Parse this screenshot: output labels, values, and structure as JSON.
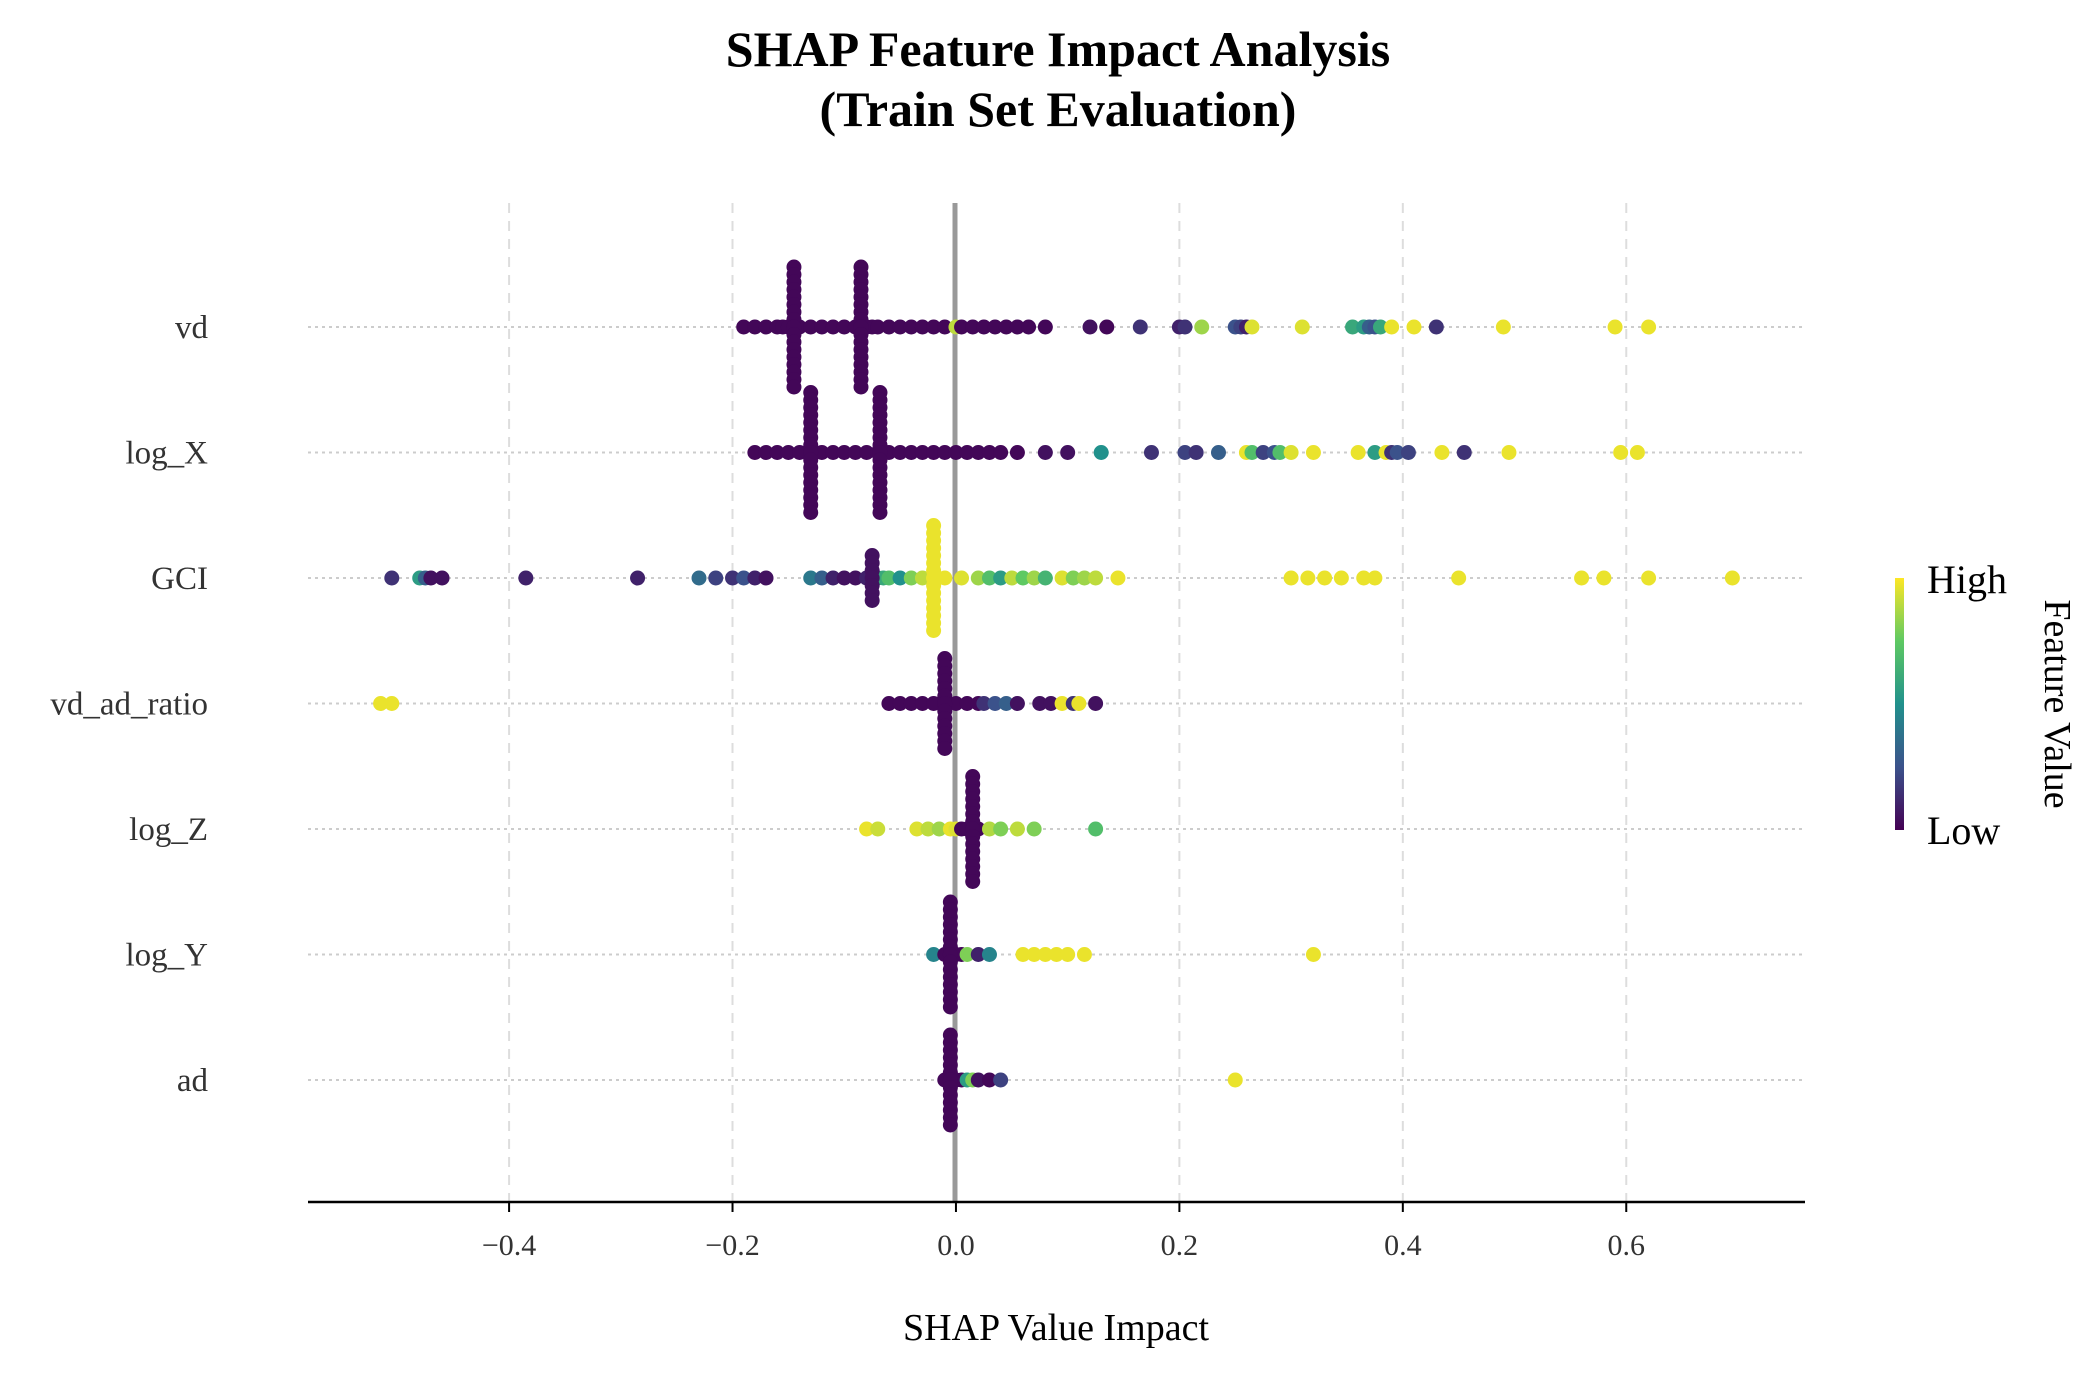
{
  "chart_data": {
    "type": "scatter",
    "title_line1": "SHAP Feature Impact Analysis",
    "title_line2": "(Train Set Evaluation)",
    "xlabel": "SHAP Value Impact",
    "xlim": [
      -0.58,
      0.76
    ],
    "xticks": [
      "−0.4",
      "−0.2",
      "0.0",
      "0.2",
      "0.4",
      "0.6"
    ],
    "xtick_values": [
      -0.4,
      -0.2,
      0.0,
      0.2,
      0.4,
      0.6
    ],
    "grid": true,
    "features": [
      "vd",
      "log_X",
      "GCI",
      "vd_ad_ratio",
      "log_Z",
      "log_Y",
      "ad"
    ],
    "colorbar": {
      "high": "High",
      "low": "Low",
      "title": "Feature Value",
      "colormap": "viridis"
    },
    "series": [
      {
        "feature": "vd",
        "points": [
          [
            -0.19,
            0.02
          ],
          [
            -0.18,
            0.02
          ],
          [
            -0.17,
            0.02
          ],
          [
            -0.16,
            0.02
          ],
          [
            -0.155,
            0.02
          ],
          [
            -0.15,
            0.02
          ],
          [
            -0.145,
            0.02
          ],
          [
            -0.14,
            0.02
          ],
          [
            -0.13,
            0.02
          ],
          [
            -0.12,
            0.02
          ],
          [
            -0.11,
            0.02
          ],
          [
            -0.1,
            0.02
          ],
          [
            -0.09,
            0.02
          ],
          [
            -0.08,
            0.02
          ],
          [
            -0.075,
            0.02
          ],
          [
            -0.07,
            0.02
          ],
          [
            -0.06,
            0.02
          ],
          [
            -0.05,
            0.02
          ],
          [
            -0.04,
            0.02
          ],
          [
            -0.03,
            0.02
          ],
          [
            -0.02,
            0.02
          ],
          [
            -0.01,
            0.02
          ],
          [
            0.0,
            0.9
          ],
          [
            0.005,
            0.02
          ],
          [
            0.015,
            0.02
          ],
          [
            0.025,
            0.02
          ],
          [
            0.035,
            0.02
          ],
          [
            0.045,
            0.02
          ],
          [
            0.055,
            0.02
          ],
          [
            0.065,
            0.02
          ],
          [
            0.08,
            0.02
          ],
          [
            0.12,
            0.05
          ],
          [
            0.135,
            0.02
          ],
          [
            0.165,
            0.15
          ],
          [
            0.2,
            0.1
          ],
          [
            0.205,
            0.15
          ],
          [
            0.22,
            0.85
          ],
          [
            0.25,
            0.25
          ],
          [
            0.255,
            0.2
          ],
          [
            0.26,
            0.1
          ],
          [
            0.265,
            0.95
          ],
          [
            0.31,
            0.95
          ],
          [
            0.355,
            0.6
          ],
          [
            0.365,
            0.55
          ],
          [
            0.37,
            0.3
          ],
          [
            0.375,
            0.25
          ],
          [
            0.38,
            0.6
          ],
          [
            0.39,
            0.97
          ],
          [
            0.41,
            0.97
          ],
          [
            0.43,
            0.15
          ],
          [
            0.49,
            0.97
          ],
          [
            0.59,
            0.97
          ],
          [
            0.62,
            0.97
          ]
        ]
      },
      {
        "feature": "log_X",
        "points": [
          [
            -0.18,
            0.02
          ],
          [
            -0.17,
            0.02
          ],
          [
            -0.16,
            0.02
          ],
          [
            -0.15,
            0.02
          ],
          [
            -0.14,
            0.02
          ],
          [
            -0.13,
            0.02
          ],
          [
            -0.12,
            0.02
          ],
          [
            -0.11,
            0.02
          ],
          [
            -0.1,
            0.02
          ],
          [
            -0.09,
            0.02
          ],
          [
            -0.08,
            0.02
          ],
          [
            -0.07,
            0.02
          ],
          [
            -0.06,
            0.02
          ],
          [
            -0.05,
            0.02
          ],
          [
            -0.04,
            0.02
          ],
          [
            -0.03,
            0.02
          ],
          [
            -0.02,
            0.02
          ],
          [
            -0.01,
            0.02
          ],
          [
            0.0,
            0.02
          ],
          [
            0.01,
            0.02
          ],
          [
            0.02,
            0.02
          ],
          [
            0.03,
            0.02
          ],
          [
            0.04,
            0.02
          ],
          [
            0.055,
            0.02
          ],
          [
            0.08,
            0.05
          ],
          [
            0.1,
            0.05
          ],
          [
            0.13,
            0.5
          ],
          [
            0.175,
            0.15
          ],
          [
            0.205,
            0.2
          ],
          [
            0.215,
            0.15
          ],
          [
            0.235,
            0.3
          ],
          [
            0.26,
            0.97
          ],
          [
            0.265,
            0.7
          ],
          [
            0.275,
            0.2
          ],
          [
            0.285,
            0.25
          ],
          [
            0.29,
            0.7
          ],
          [
            0.3,
            0.95
          ],
          [
            0.32,
            0.97
          ],
          [
            0.36,
            0.97
          ],
          [
            0.375,
            0.55
          ],
          [
            0.385,
            0.97
          ],
          [
            0.39,
            0.15
          ],
          [
            0.395,
            0.25
          ],
          [
            0.405,
            0.2
          ],
          [
            0.435,
            0.97
          ],
          [
            0.455,
            0.15
          ],
          [
            0.495,
            0.97
          ],
          [
            0.595,
            0.97
          ],
          [
            0.61,
            0.97
          ]
        ]
      },
      {
        "feature": "GCI",
        "points": [
          [
            -0.505,
            0.15
          ],
          [
            -0.48,
            0.55
          ],
          [
            -0.475,
            0.3
          ],
          [
            -0.47,
            0.05
          ],
          [
            -0.46,
            0.05
          ],
          [
            -0.385,
            0.1
          ],
          [
            -0.285,
            0.1
          ],
          [
            -0.23,
            0.35
          ],
          [
            -0.215,
            0.2
          ],
          [
            -0.2,
            0.15
          ],
          [
            -0.19,
            0.25
          ],
          [
            -0.18,
            0.1
          ],
          [
            -0.17,
            0.05
          ],
          [
            -0.13,
            0.4
          ],
          [
            -0.12,
            0.3
          ],
          [
            -0.11,
            0.1
          ],
          [
            -0.1,
            0.05
          ],
          [
            -0.09,
            0.05
          ],
          [
            -0.08,
            0.1
          ],
          [
            -0.07,
            0.35
          ],
          [
            -0.065,
            0.6
          ],
          [
            -0.06,
            0.7
          ],
          [
            -0.05,
            0.5
          ],
          [
            -0.04,
            0.8
          ],
          [
            -0.03,
            0.9
          ],
          [
            -0.02,
            0.97
          ],
          [
            -0.01,
            0.97
          ],
          [
            0.005,
            0.95
          ],
          [
            0.02,
            0.85
          ],
          [
            0.03,
            0.7
          ],
          [
            0.04,
            0.55
          ],
          [
            0.05,
            0.9
          ],
          [
            0.06,
            0.75
          ],
          [
            0.07,
            0.85
          ],
          [
            0.08,
            0.65
          ],
          [
            0.095,
            0.95
          ],
          [
            0.105,
            0.8
          ],
          [
            0.115,
            0.85
          ],
          [
            0.125,
            0.9
          ],
          [
            0.145,
            0.97
          ],
          [
            0.3,
            0.97
          ],
          [
            0.315,
            0.97
          ],
          [
            0.33,
            0.97
          ],
          [
            0.345,
            0.97
          ],
          [
            0.365,
            0.97
          ],
          [
            0.375,
            0.97
          ],
          [
            0.45,
            0.97
          ],
          [
            0.56,
            0.97
          ],
          [
            0.58,
            0.97
          ],
          [
            0.62,
            0.97
          ],
          [
            0.695,
            0.97
          ]
        ]
      },
      {
        "feature": "vd_ad_ratio",
        "points": [
          [
            -0.515,
            0.97
          ],
          [
            -0.505,
            0.97
          ],
          [
            -0.06,
            0.02
          ],
          [
            -0.05,
            0.02
          ],
          [
            -0.04,
            0.02
          ],
          [
            -0.03,
            0.02
          ],
          [
            -0.02,
            0.02
          ],
          [
            -0.01,
            0.02
          ],
          [
            0.0,
            0.02
          ],
          [
            0.01,
            0.02
          ],
          [
            0.02,
            0.02
          ],
          [
            0.025,
            0.15
          ],
          [
            0.035,
            0.25
          ],
          [
            0.045,
            0.3
          ],
          [
            0.055,
            0.05
          ],
          [
            0.075,
            0.05
          ],
          [
            0.085,
            0.05
          ],
          [
            0.095,
            0.97
          ],
          [
            0.105,
            0.15
          ],
          [
            0.11,
            0.97
          ],
          [
            0.125,
            0.05
          ]
        ]
      },
      {
        "feature": "log_Z",
        "points": [
          [
            -0.08,
            0.97
          ],
          [
            -0.07,
            0.92
          ],
          [
            -0.035,
            0.95
          ],
          [
            -0.025,
            0.9
          ],
          [
            -0.015,
            0.85
          ],
          [
            -0.005,
            0.97
          ],
          [
            0.0,
            0.95
          ],
          [
            0.005,
            0.02
          ],
          [
            0.01,
            0.02
          ],
          [
            0.015,
            0.02
          ],
          [
            0.02,
            0.02
          ],
          [
            0.03,
            0.88
          ],
          [
            0.04,
            0.8
          ],
          [
            0.055,
            0.9
          ],
          [
            0.07,
            0.8
          ],
          [
            0.125,
            0.7
          ]
        ]
      },
      {
        "feature": "log_Y",
        "points": [
          [
            -0.02,
            0.45
          ],
          [
            -0.01,
            0.02
          ],
          [
            0.0,
            0.02
          ],
          [
            0.005,
            0.02
          ],
          [
            0.01,
            0.8
          ],
          [
            0.02,
            0.1
          ],
          [
            0.03,
            0.45
          ],
          [
            0.06,
            0.97
          ],
          [
            0.07,
            0.97
          ],
          [
            0.08,
            0.97
          ],
          [
            0.09,
            0.97
          ],
          [
            0.1,
            0.97
          ],
          [
            0.115,
            0.97
          ],
          [
            0.32,
            0.97
          ]
        ]
      },
      {
        "feature": "ad",
        "points": [
          [
            -0.01,
            0.02
          ],
          [
            0.0,
            0.02
          ],
          [
            0.005,
            0.02
          ],
          [
            0.01,
            0.55
          ],
          [
            0.015,
            0.8
          ],
          [
            0.02,
            0.05
          ],
          [
            0.03,
            0.02
          ],
          [
            0.04,
            0.2
          ],
          [
            0.25,
            0.97
          ]
        ]
      }
    ]
  }
}
